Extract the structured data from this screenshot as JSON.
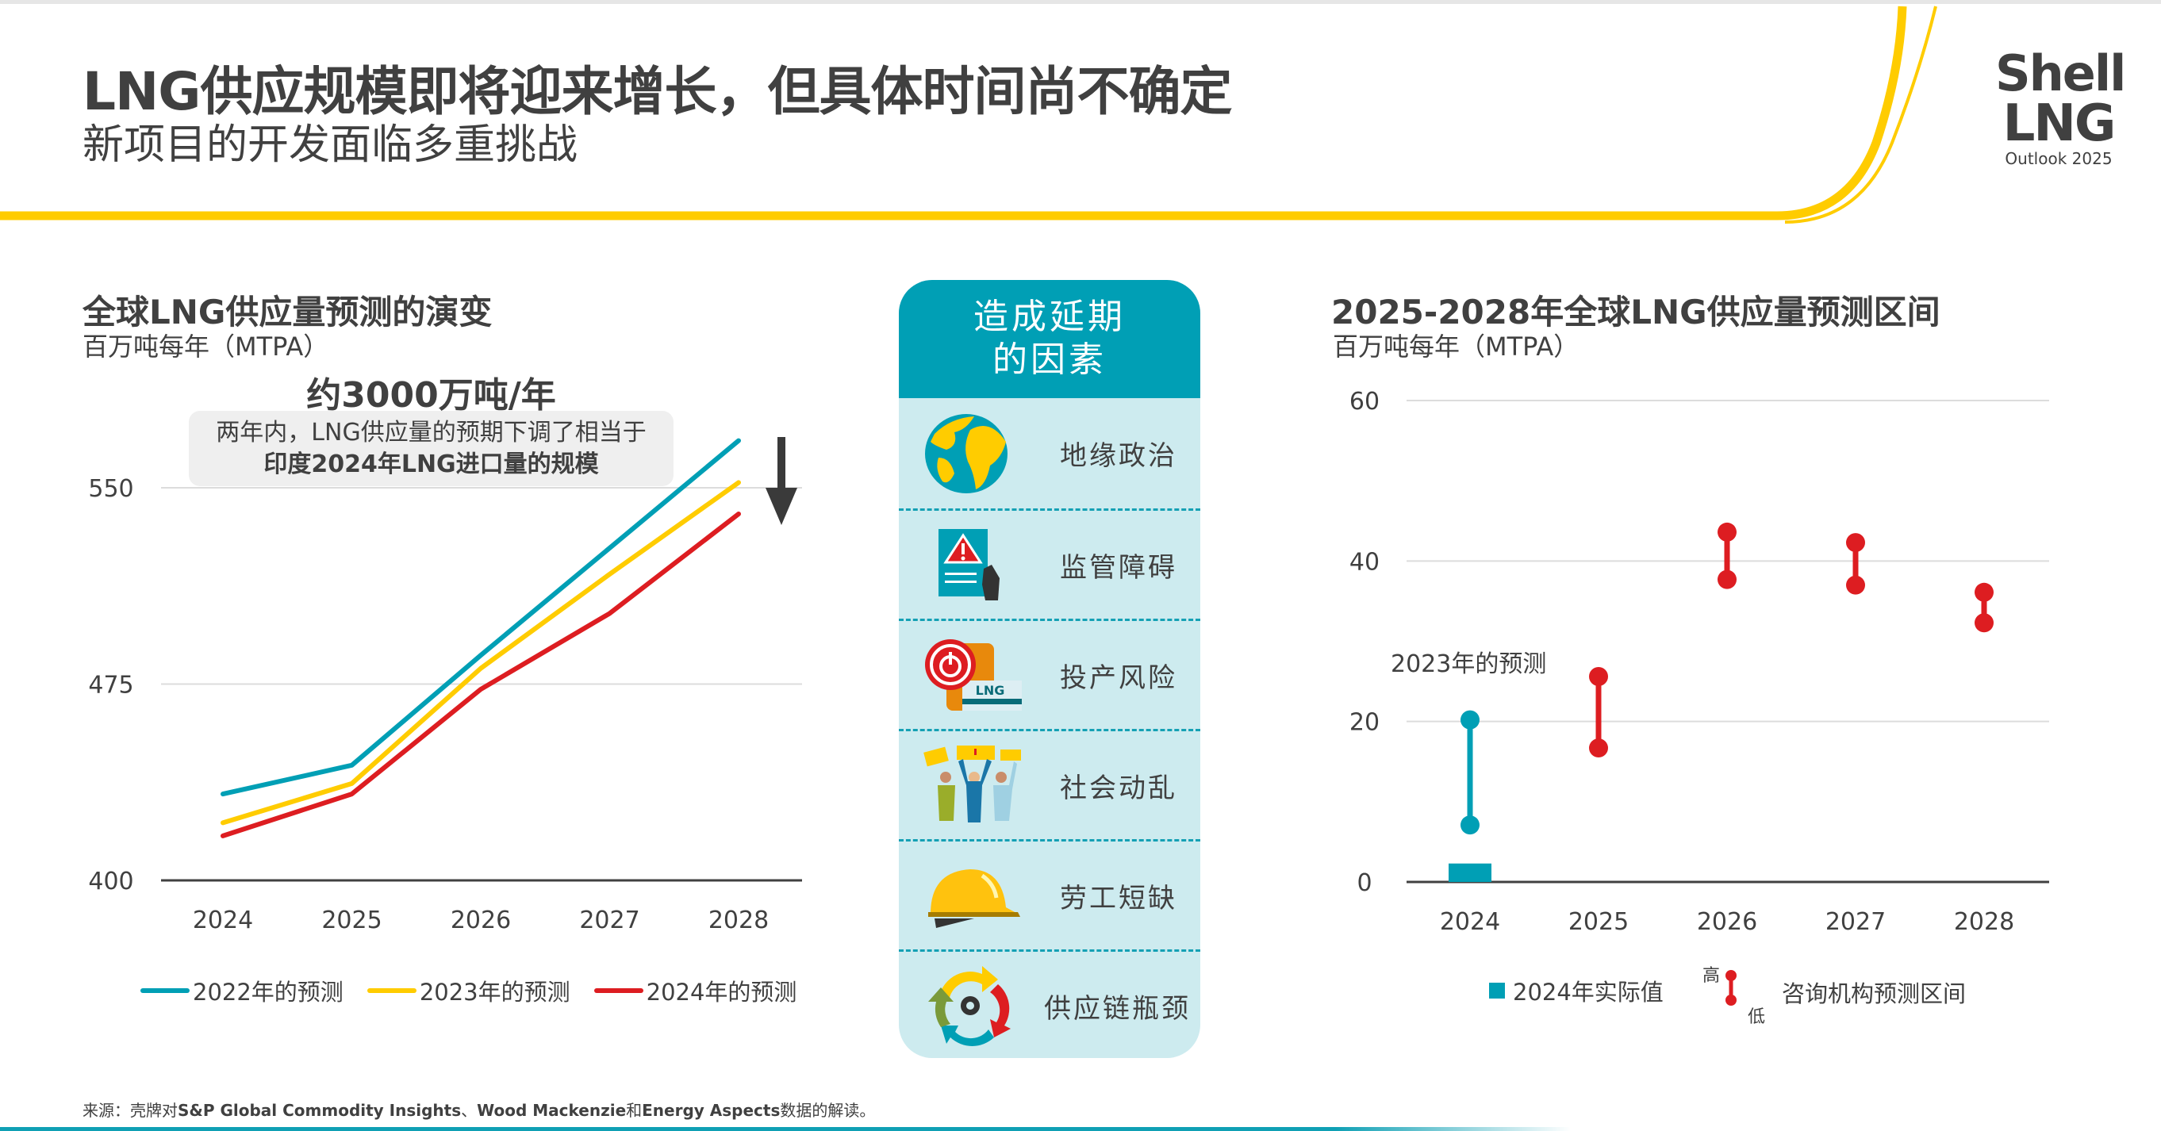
{
  "header": {
    "title": "LNG供应规模即将迎来增长，但具体时间尚不确定",
    "subtitle": "新项目的开发面临多重挑战",
    "logo": {
      "line1": "Shell",
      "line2": "LNG",
      "line3": "Outlook 2025"
    }
  },
  "colors": {
    "teal": "#009fb5",
    "yellow": "#ffcc00",
    "red": "#dd1d21",
    "panel_bg": "#cdebef",
    "text": "#404040"
  },
  "left_chart_text": {
    "title": "全球LNG供应量预测的演变",
    "unit": "百万吨每年（MTPA）",
    "annotation_head": "约3000万吨/年",
    "annotation_line1": "两年内，LNG供应量的预期下调了相当于",
    "annotation_line2": "印度2024年LNG进口量的规模"
  },
  "right_chart_text": {
    "title": "2025-2028年全球LNG供应量预测区间",
    "unit": "百万吨每年（MTPA）",
    "annotation": "2023年的预测",
    "legend_actual": "2024年实际值",
    "legend_high": "高",
    "legend_low": "低",
    "legend_range": "咨询机构预测区间"
  },
  "factors": {
    "title_line1": "造成延期",
    "title_line2": "的因素",
    "items": [
      {
        "label": "地缘政治",
        "icon": "globe-icon"
      },
      {
        "label": "监管障碍",
        "icon": "regulation-warning-icon"
      },
      {
        "label": "投产风险",
        "icon": "lng-power-button-icon"
      },
      {
        "label": "社会动乱",
        "icon": "protesters-icon"
      },
      {
        "label": "劳工短缺",
        "icon": "hard-hat-icon"
      },
      {
        "label": "供应链瓶颈",
        "icon": "supply-chain-cycle-icon"
      }
    ]
  },
  "source": {
    "prefix": "来源：壳牌对",
    "s1": "S&P Global Commodity Insights",
    "sep": "、",
    "s2": "Wood Mackenzie",
    "and": "和",
    "s3": "Energy Aspects",
    "suffix": "数据的解读。"
  },
  "chart_data": [
    {
      "type": "line",
      "title": "全球LNG供应量预测的演变",
      "ylabel": "百万吨每年（MTPA）",
      "categories": [
        "2024",
        "2025",
        "2026",
        "2027",
        "2028"
      ],
      "ylim": [
        400,
        580
      ],
      "yticks": [
        400,
        475,
        550
      ],
      "grid": true,
      "legend": "bottom",
      "series": [
        {
          "name": "2022年的预测",
          "color": "#009fb5",
          "values": [
            433,
            444,
            486,
            527,
            568
          ]
        },
        {
          "name": "2023年的预测",
          "color": "#ffcc00",
          "values": [
            422,
            437,
            481,
            517,
            552
          ]
        },
        {
          "name": "2024年的预测",
          "color": "#dd1d21",
          "values": [
            417,
            433,
            473,
            502,
            540
          ]
        }
      ]
    },
    {
      "type": "range",
      "title": "2025-2028年全球LNG供应量预测区间",
      "ylabel": "百万吨每年（MTPA）",
      "categories": [
        "2024",
        "2025",
        "2026",
        "2027",
        "2028"
      ],
      "ylim": [
        0,
        60
      ],
      "yticks": [
        0,
        20,
        40,
        60
      ],
      "grid": true,
      "legend": "bottom",
      "actual": {
        "name": "2024年实际值",
        "category": "2024",
        "value": 2.3,
        "color": "#009fb5"
      },
      "ranges": [
        {
          "category": "2024",
          "high": 20.2,
          "low": 7.1,
          "color": "#009fb5",
          "label": "2023年的预测"
        },
        {
          "category": "2025",
          "high": 25.6,
          "low": 16.7,
          "color": "#dd1d21"
        },
        {
          "category": "2026",
          "high": 43.6,
          "low": 37.7,
          "color": "#dd1d21"
        },
        {
          "category": "2027",
          "high": 42.3,
          "low": 37.0,
          "color": "#dd1d21"
        },
        {
          "category": "2028",
          "high": 36.1,
          "low": 32.3,
          "color": "#dd1d21"
        }
      ],
      "range_legend": "咨询机构预测区间"
    }
  ]
}
